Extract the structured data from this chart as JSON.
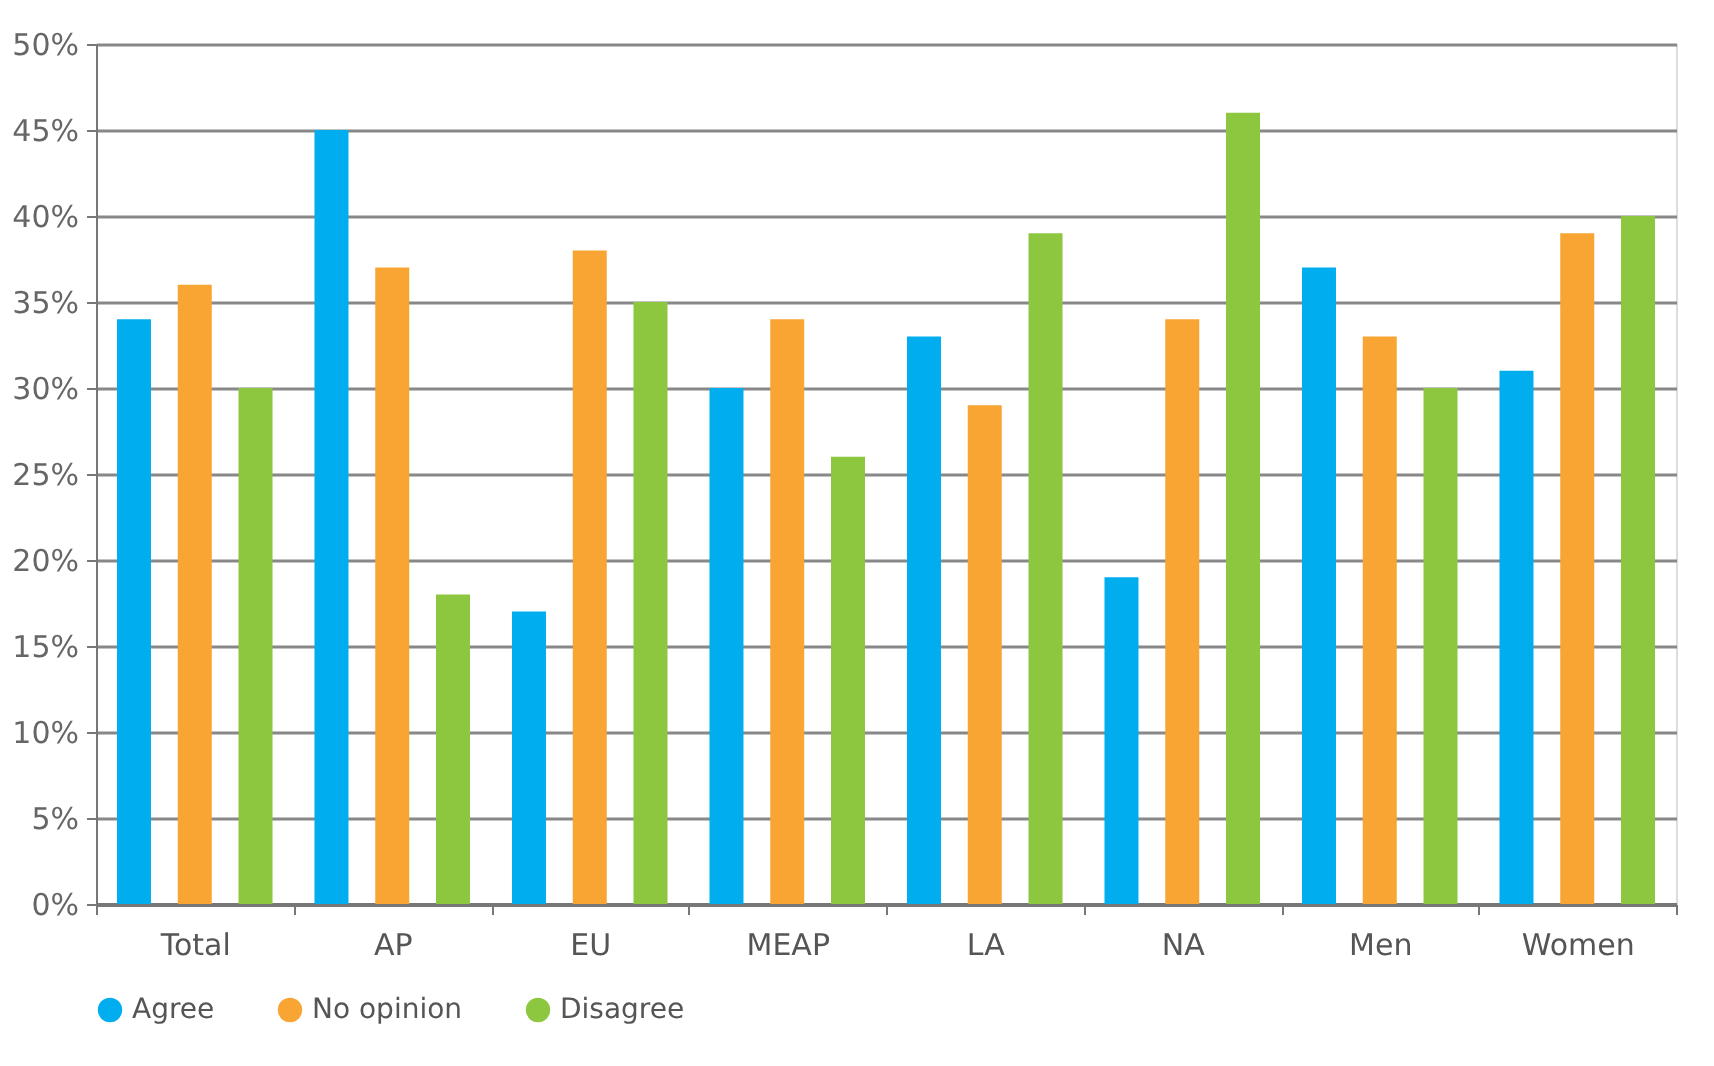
{
  "chart_data": {
    "type": "bar",
    "categories": [
      "Total",
      "AP",
      "EU",
      "MEAP",
      "LA",
      "NA",
      "Men",
      "Women"
    ],
    "series": [
      {
        "name": "Agree",
        "color": "#00aeef",
        "values": [
          34,
          45,
          17,
          30,
          33,
          19,
          37,
          31
        ]
      },
      {
        "name": "No opinion",
        "color": "#f9a533",
        "values": [
          36,
          37,
          38,
          34,
          29,
          34,
          33,
          39
        ]
      },
      {
        "name": "Disagree",
        "color": "#8dc63f",
        "values": [
          30,
          18,
          35,
          26,
          39,
          46,
          30,
          40
        ]
      }
    ],
    "ylim": [
      0,
      50
    ],
    "yticks": [
      {
        "value": 0,
        "label": "0%"
      },
      {
        "value": 5,
        "label": "5%"
      },
      {
        "value": 10,
        "label": "10%"
      },
      {
        "value": 15,
        "label": "15%"
      },
      {
        "value": 20,
        "label": "20%"
      },
      {
        "value": 25,
        "label": "25%"
      },
      {
        "value": 30,
        "label": "30%"
      },
      {
        "value": 35,
        "label": "35%"
      },
      {
        "value": 40,
        "label": "40%"
      },
      {
        "value": 45,
        "label": "45%"
      },
      {
        "value": 50,
        "label": "50%"
      }
    ],
    "grid": "y",
    "legend": "bottom"
  }
}
